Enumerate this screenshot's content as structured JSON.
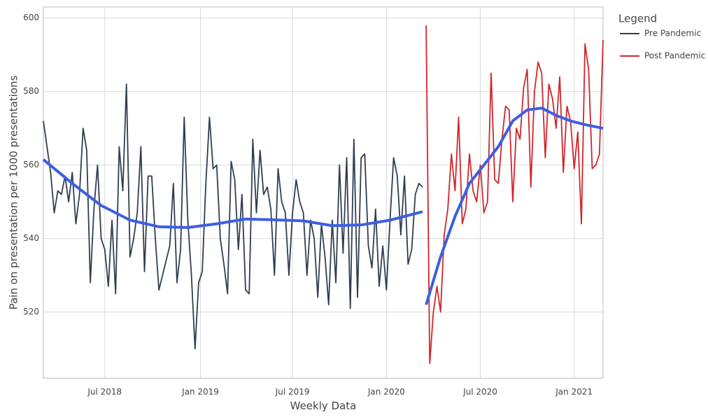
{
  "chart_data": {
    "type": "line",
    "xlabel": "Weekly Data",
    "ylabel": "Pain on presentation per 1000 presentations",
    "legend_title": "Legend",
    "legend": "right",
    "grid": true,
    "xlim": [
      0,
      155
    ],
    "ylim": [
      502,
      603
    ],
    "xticks": [
      {
        "value": 17,
        "label": "Jul 2018"
      },
      {
        "value": 43.5,
        "label": "Jan 2019"
      },
      {
        "value": 69,
        "label": "Jul 2019"
      },
      {
        "value": 95,
        "label": "Jan 2020"
      },
      {
        "value": 121,
        "label": "Jul 2020"
      },
      {
        "value": 147,
        "label": "Jan 2021"
      }
    ],
    "yticks": [
      520,
      540,
      560,
      580,
      600
    ],
    "series": [
      {
        "name": "Pre Pandemic",
        "color": "#2f3e50",
        "x": [
          0,
          1,
          2,
          3,
          4,
          5,
          6,
          7,
          8,
          9,
          10,
          11,
          12,
          13,
          14,
          15,
          16,
          17,
          18,
          19,
          20,
          21,
          22,
          23,
          24,
          25,
          26,
          27,
          28,
          29,
          30,
          31,
          32,
          33,
          34,
          35,
          36,
          37,
          38,
          39,
          40,
          41,
          42,
          43,
          44,
          45,
          46,
          47,
          48,
          49,
          50,
          51,
          52,
          53,
          54,
          55,
          56,
          57,
          58,
          59,
          60,
          61,
          62,
          63,
          64,
          65,
          66,
          67,
          68,
          69,
          70,
          71,
          72,
          73,
          74,
          75,
          76,
          77,
          78,
          79,
          80,
          81,
          82,
          83,
          84,
          85,
          86,
          87,
          88,
          89,
          90,
          91,
          92,
          93,
          94,
          95,
          96,
          97,
          98,
          99,
          100,
          101,
          102,
          103,
          104,
          105
        ],
        "values": [
          572,
          565,
          558,
          547,
          553,
          552,
          557,
          550,
          558,
          544,
          552,
          570,
          564,
          528,
          548,
          560,
          540,
          537,
          527,
          545,
          525,
          565,
          553,
          582,
          535,
          540,
          547,
          565,
          531,
          557,
          557,
          540,
          526,
          530,
          534,
          538,
          555,
          528,
          537,
          573,
          545,
          530,
          510,
          528,
          531,
          555,
          573,
          559,
          560,
          540,
          533,
          525,
          561,
          556,
          537,
          552,
          526,
          525,
          567,
          547,
          564,
          552,
          554,
          548,
          530,
          559,
          550,
          547,
          530,
          547,
          556,
          550,
          547,
          530,
          545,
          540,
          524,
          544,
          535,
          522,
          545,
          528,
          560,
          536,
          562,
          521,
          567,
          524,
          562,
          563,
          538,
          532,
          548,
          527,
          538,
          526,
          545,
          562,
          557,
          541,
          557,
          533,
          537,
          552,
          555,
          554
        ]
      },
      {
        "name": "Post Pandemic",
        "color": "#d0262b",
        "x": [
          106,
          107,
          108,
          109,
          110,
          111,
          112,
          113,
          114,
          115,
          116,
          117,
          118,
          119,
          120,
          121,
          122,
          123,
          124,
          125,
          126,
          127,
          128,
          129,
          130,
          131,
          132,
          133,
          134,
          135,
          136,
          137,
          138,
          139,
          140,
          141,
          142,
          143,
          144,
          145,
          146,
          147,
          148,
          149,
          150,
          151,
          152,
          153,
          154,
          155
        ],
        "values": [
          598,
          506,
          520,
          527,
          520,
          541,
          548,
          563,
          553,
          573,
          544,
          548,
          563,
          553,
          550,
          560,
          547,
          550,
          585,
          556,
          555,
          567,
          576,
          575,
          550,
          570,
          567,
          581,
          586,
          554,
          580,
          588,
          585,
          562,
          582,
          578,
          570,
          584,
          558,
          576,
          572,
          559,
          569,
          544,
          593,
          586,
          559,
          560,
          563,
          594
        ]
      }
    ],
    "trend": [
      {
        "color": "#3d5fe3",
        "x": [
          0,
          8,
          16,
          24,
          32,
          40,
          48,
          56,
          64,
          72,
          80,
          88,
          96,
          105
        ],
        "values": [
          561.5,
          555,
          549,
          545,
          543.2,
          543,
          544,
          545.3,
          545.1,
          544.8,
          543.5,
          543.7,
          545,
          547.3
        ]
      },
      {
        "color": "#3d5fe3",
        "x": [
          106,
          110,
          114,
          118,
          122,
          126,
          130,
          134,
          138,
          142,
          146,
          150,
          155
        ],
        "values": [
          522,
          535,
          546,
          555,
          560,
          565,
          572,
          575,
          575.5,
          573.5,
          572,
          571,
          570
        ]
      }
    ]
  }
}
